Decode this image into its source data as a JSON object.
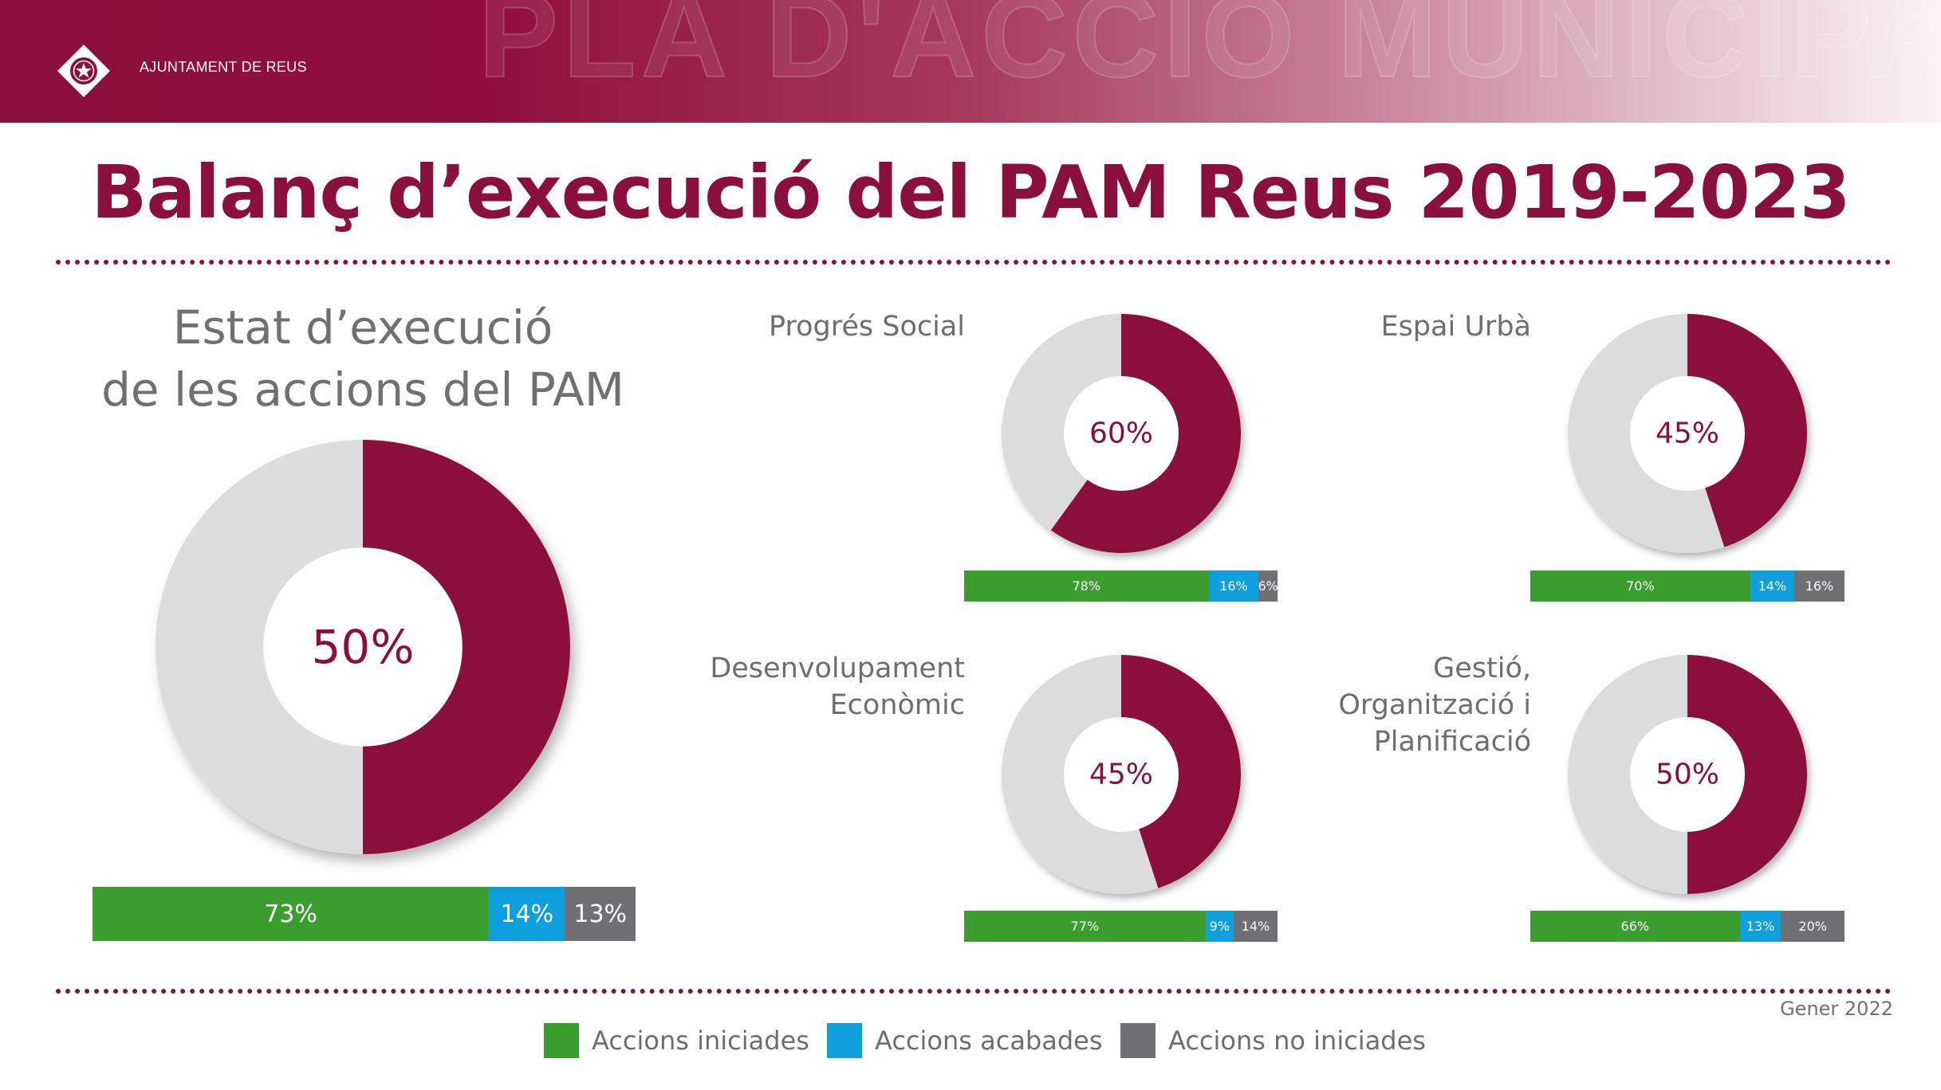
{
  "header": {
    "org_name": "AJUNTAMENT DE REUS",
    "watermark": "PLA D'ACCIÓ MUNICIPAL"
  },
  "page_title": "Balanç d’execució del PAM Reus 2019-2023",
  "date": "Gener 2022",
  "colors": {
    "brand": "#8a0f3a",
    "remaining": "#dcdcdd",
    "iniciades": "#3a9e2f",
    "acabades": "#0f9fdc",
    "no_iniciades": "#707072"
  },
  "legend": {
    "items": [
      {
        "label": "Accions iniciades",
        "color": "#3a9e2f"
      },
      {
        "label": "Accions acabades",
        "color": "#0f9fdc"
      },
      {
        "label": "Accions no iniciades",
        "color": "#707072"
      }
    ]
  },
  "chart_data": [
    {
      "type": "pie",
      "title_lines": [
        "Estat d’execució",
        "de les accions del PAM"
      ],
      "value": 50,
      "center_label": "50%",
      "bar": {
        "values": [
          73,
          14,
          13
        ],
        "labels": [
          "73%",
          "14%",
          "13%"
        ]
      }
    },
    {
      "type": "pie",
      "title_lines": [
        "Progrés Social"
      ],
      "value": 60,
      "center_label": "60%",
      "bar": {
        "values": [
          78,
          16,
          6
        ],
        "labels": [
          "78%",
          "16%",
          "6%"
        ]
      }
    },
    {
      "type": "pie",
      "title_lines": [
        "Espai Urbà"
      ],
      "value": 45,
      "center_label": "45%",
      "bar": {
        "values": [
          70,
          14,
          16
        ],
        "labels": [
          "70%",
          "14%",
          "16%"
        ]
      }
    },
    {
      "type": "pie",
      "title_lines": [
        "Desenvolupament",
        "Econòmic"
      ],
      "value": 45,
      "center_label": "45%",
      "bar": {
        "values": [
          77,
          9,
          14
        ],
        "labels": [
          "77%",
          "9%",
          "14%"
        ]
      }
    },
    {
      "type": "pie",
      "title_lines": [
        "Gestió,",
        "Organització i",
        "Planificació"
      ],
      "value": 50,
      "center_label": "50%",
      "bar": {
        "values": [
          66,
          13,
          20
        ],
        "labels": [
          "66%",
          "13%",
          "20%"
        ]
      }
    }
  ]
}
